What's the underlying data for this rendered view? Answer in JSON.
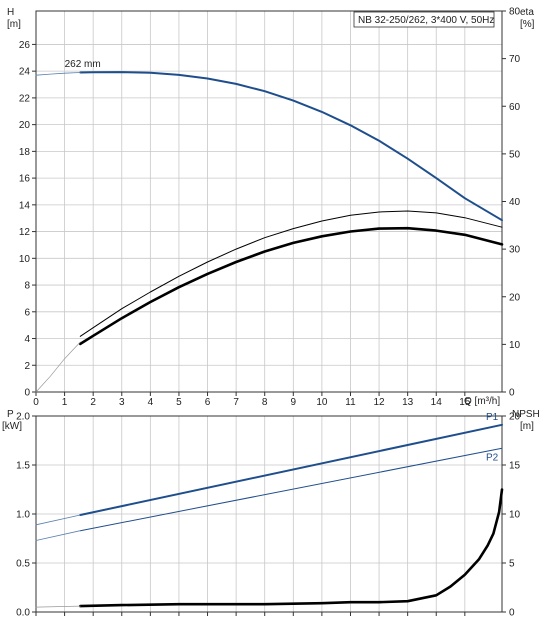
{
  "chart_data": [
    {
      "type": "line",
      "title": "NB 32-250/262, 3*400 V, 50Hz",
      "xlabel": "Q [m³/h]",
      "ylabel_left": "H",
      "ylabel_left_unit": "[m]",
      "ylabel_right": "eta",
      "ylabel_right_unit": "[%]",
      "xlim": [
        0,
        16.3
      ],
      "ylim_left": [
        0,
        28.5
      ],
      "ylim_right": [
        0,
        80
      ],
      "x_ticks": [
        0,
        1,
        2,
        3,
        4,
        5,
        6,
        7,
        8,
        9,
        10,
        11,
        12,
        13,
        14,
        15
      ],
      "y_left_ticks": [
        0,
        2,
        4,
        6,
        8,
        10,
        12,
        14,
        16,
        18,
        20,
        22,
        24,
        26
      ],
      "y_right_ticks": [
        0,
        10,
        20,
        30,
        40,
        50,
        60,
        70,
        80
      ],
      "grid": true,
      "annotations": [
        {
          "text": "262 mm",
          "x": 1.0,
          "y": 24.3
        }
      ],
      "series": [
        {
          "key": "head",
          "axis": "left",
          "color": "#1f4e8c",
          "width": 2,
          "x": [
            1.55,
            2,
            3,
            4,
            5,
            6,
            7,
            8,
            9,
            10,
            11,
            12,
            13,
            14,
            15,
            16.3
          ],
          "y": [
            23.9,
            23.92,
            23.93,
            23.88,
            23.72,
            23.45,
            23.05,
            22.5,
            21.8,
            20.95,
            19.95,
            18.8,
            17.45,
            16.0,
            14.5,
            12.85
          ]
        },
        {
          "key": "head_ext",
          "axis": "left",
          "color": "#5a7fb0",
          "width": 0.8,
          "x": [
            0,
            0.5,
            1.0,
            1.55
          ],
          "y": [
            23.7,
            23.78,
            23.85,
            23.9
          ]
        },
        {
          "key": "eta_thin",
          "axis": "right",
          "color": "#000000",
          "width": 1,
          "x": [
            1.55,
            2,
            3,
            4,
            5,
            6,
            7,
            8,
            9,
            10,
            11,
            12,
            13,
            14,
            15,
            16.3
          ],
          "y": [
            11.7,
            13.5,
            17.5,
            21.0,
            24.3,
            27.3,
            30.0,
            32.4,
            34.3,
            35.9,
            37.1,
            37.8,
            38.0,
            37.6,
            36.6,
            34.6
          ]
        },
        {
          "key": "eta_thick",
          "axis": "right",
          "color": "#000000",
          "width": 2.6,
          "x": [
            1.55,
            2,
            3,
            4,
            5,
            6,
            7,
            8,
            9,
            10,
            11,
            12,
            13,
            14,
            15,
            16.3
          ],
          "y": [
            10.1,
            11.8,
            15.5,
            18.9,
            22.0,
            24.8,
            27.3,
            29.5,
            31.3,
            32.7,
            33.7,
            34.3,
            34.4,
            33.9,
            33.0,
            31.0
          ]
        },
        {
          "key": "eta_ext",
          "axis": "right",
          "color": "#999999",
          "width": 0.7,
          "x": [
            0,
            0.5,
            1.0,
            1.55
          ],
          "y": [
            0,
            3.3,
            7.0,
            10.5
          ]
        }
      ]
    },
    {
      "type": "line",
      "xlabel": "",
      "ylabel_left": "P",
      "ylabel_left_unit": "[kW]",
      "ylabel_right": "NPSH",
      "ylabel_right_unit": "[m]",
      "xlim": [
        0,
        16.3
      ],
      "ylim_left": [
        0,
        2.0
      ],
      "ylim_right": [
        0,
        20
      ],
      "y_left_ticks": [
        0.0,
        0.5,
        1.0,
        1.5,
        2.0
      ],
      "y_left_tick_labels": [
        "0.0",
        "0.5",
        "1.0",
        "1.5",
        "2.0"
      ],
      "y_right_ticks": [
        0,
        5,
        10,
        15,
        20
      ],
      "grid": true,
      "series": [
        {
          "key": "P1",
          "name": "P1",
          "axis": "left",
          "color": "#1f4e8c",
          "width": 2,
          "x": [
            1.55,
            16.3
          ],
          "y": [
            0.99,
            1.91
          ]
        },
        {
          "key": "P1_ext",
          "axis": "left",
          "color": "#5a7fb0",
          "width": 0.8,
          "x": [
            0,
            1.55
          ],
          "y": [
            0.89,
            0.99
          ]
        },
        {
          "key": "P2",
          "name": "P2",
          "axis": "left",
          "color": "#1f4e8c",
          "width": 1,
          "x": [
            1.55,
            16.3
          ],
          "y": [
            0.83,
            1.67
          ]
        },
        {
          "key": "P2_ext",
          "axis": "left",
          "color": "#5a7fb0",
          "width": 0.8,
          "x": [
            0,
            1.55
          ],
          "y": [
            0.73,
            0.83
          ]
        },
        {
          "key": "NPSH",
          "axis": "right",
          "color": "#000000",
          "width": 2.6,
          "x": [
            1.55,
            3,
            5,
            8,
            10,
            11,
            12,
            13,
            14,
            14.5,
            15,
            15.5,
            15.8,
            16.0,
            16.2,
            16.3
          ],
          "y": [
            0.6,
            0.7,
            0.8,
            0.8,
            0.9,
            1.0,
            1.0,
            1.1,
            1.7,
            2.6,
            3.8,
            5.4,
            6.8,
            8.0,
            10.2,
            12.5
          ]
        },
        {
          "key": "NPSH_ext",
          "axis": "right",
          "color": "#999999",
          "width": 0.7,
          "x": [
            0,
            1.55
          ],
          "y": [
            0.5,
            0.6
          ]
        }
      ]
    }
  ]
}
